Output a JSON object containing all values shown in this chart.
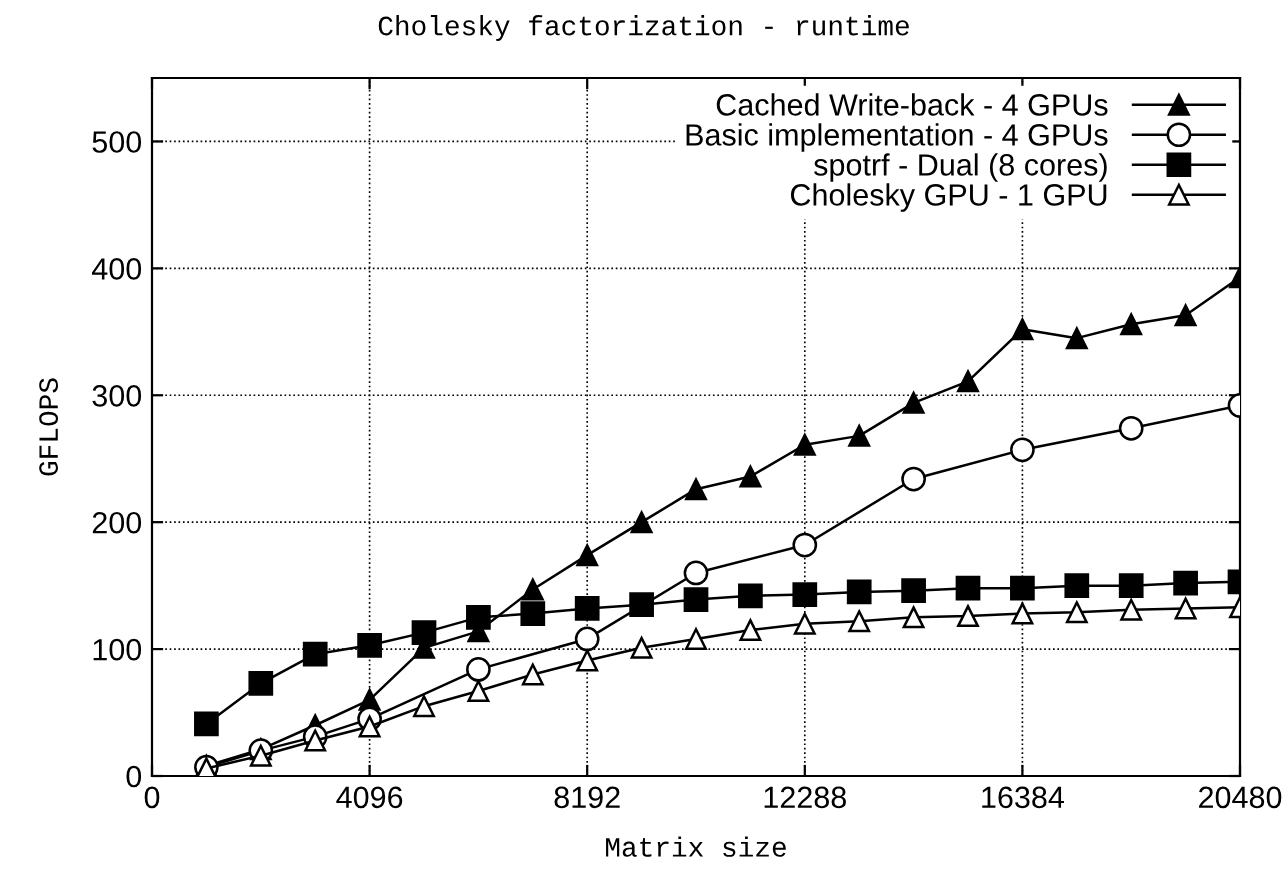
{
  "chart_data": {
    "type": "line",
    "title": "Cholesky factorization - runtime",
    "xlabel": "Matrix size",
    "ylabel": "GFLOPS",
    "xlim": [
      0,
      20480
    ],
    "xticks": [
      0,
      4096,
      8192,
      12288,
      16384,
      20480
    ],
    "ylim": [
      0,
      550
    ],
    "yticks": [
      0,
      100,
      200,
      300,
      400,
      500
    ],
    "grid": true,
    "legend": "top right",
    "line_style": "solid",
    "series": [
      {
        "name": "Cached Write-back - 4 GPUs",
        "color": "#000000",
        "marker": "triangle",
        "x": [
          1024,
          2048,
          3072,
          4096,
          5120,
          6144,
          7168,
          8192,
          9216,
          10240,
          11264,
          12288,
          13312,
          14336,
          15360,
          16384,
          17408,
          18432,
          19456,
          20480
        ],
        "values": [
          8,
          21,
          40,
          60,
          101,
          114,
          147,
          174,
          200,
          226,
          236,
          261,
          268,
          294,
          311,
          352,
          345,
          356,
          363,
          393
        ]
      },
      {
        "name": "Basic implementation - 4 GPUs",
        "color": "#000000",
        "marker": "circle",
        "x": [
          1024,
          2048,
          3072,
          4096,
          6144,
          8192,
          10240,
          12288,
          14336,
          16384,
          18432,
          20480
        ],
        "values": [
          7,
          20,
          31,
          45,
          84,
          108,
          160,
          182,
          234,
          257,
          274,
          292
        ]
      },
      {
        "name": "spotrf - Dual (8 cores)",
        "color": "#000000",
        "marker": "square",
        "x": [
          1024,
          2048,
          3072,
          4096,
          5120,
          6144,
          7168,
          8192,
          9216,
          10240,
          11264,
          12288,
          13312,
          14336,
          15360,
          16384,
          17408,
          18432,
          19456,
          20480
        ],
        "values": [
          41,
          73,
          96,
          103,
          113,
          125,
          128,
          132,
          135,
          139,
          142,
          143,
          145,
          146,
          148,
          148,
          150,
          150,
          152,
          153
        ]
      },
      {
        "name": "Cholesky GPU - 1 GPU",
        "color": "#000000",
        "marker": "triangle",
        "x": [
          1024,
          2048,
          3072,
          4096,
          5120,
          6144,
          7168,
          8192,
          9216,
          10240,
          11264,
          12288,
          13312,
          14336,
          15360,
          16384,
          17408,
          18432,
          19456,
          20480
        ],
        "values": [
          6,
          16,
          28,
          39,
          55,
          67,
          80,
          91,
          101,
          108,
          115,
          120,
          122,
          125,
          126,
          128,
          129,
          131,
          132,
          133
        ]
      }
    ]
  }
}
